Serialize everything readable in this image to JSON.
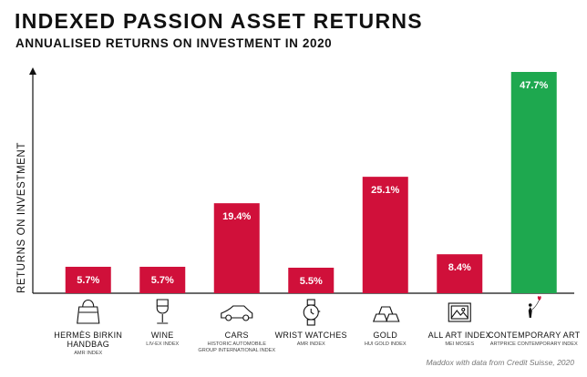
{
  "chart_data": {
    "type": "bar",
    "title": "INDEXED PASSION ASSET RETURNS",
    "subtitle": "ANNUALISED RETURNS ON INVESTMENT IN 2020",
    "ylabel": "RETURNS ON INVESTMENT",
    "xlabel": "",
    "ylim": [
      0,
      50
    ],
    "grid": false,
    "categories": [
      {
        "name_lines": [
          "HERMÈS BIRKIN",
          "HANDBAG"
        ],
        "index_lines": [
          "AMR INDEX"
        ],
        "icon": "handbag-icon"
      },
      {
        "name_lines": [
          "WINE"
        ],
        "index_lines": [
          "LIV-EX INDEX"
        ],
        "icon": "wine-glass-icon"
      },
      {
        "name_lines": [
          "CARS"
        ],
        "index_lines": [
          "HISTORIC AUTOMOBILE",
          "GROUP INTERNATIONAL INDEX"
        ],
        "icon": "car-icon"
      },
      {
        "name_lines": [
          "WRIST WATCHES"
        ],
        "index_lines": [
          "AMR INDEX"
        ],
        "icon": "watch-icon"
      },
      {
        "name_lines": [
          "GOLD"
        ],
        "index_lines": [
          "HUI GOLD INDEX"
        ],
        "icon": "gold-bars-icon"
      },
      {
        "name_lines": [
          "ALL ART INDEX"
        ],
        "index_lines": [
          "MEI MOSES"
        ],
        "icon": "framed-picture-icon"
      },
      {
        "name_lines": [
          "CONTEMPORARY ART"
        ],
        "index_lines": [
          "ARTPRICE CONTEMPORARY INDEX"
        ],
        "icon": "girl-with-balloon-icon"
      }
    ],
    "values": [
      5.7,
      5.7,
      19.4,
      5.5,
      25.1,
      8.4,
      47.7
    ],
    "value_labels": [
      "5.7%",
      "5.7%",
      "19.4%",
      "5.5%",
      "25.1%",
      "8.4%",
      "47.7%"
    ],
    "colors": [
      "#d0103a",
      "#d0103a",
      "#d0103a",
      "#d0103a",
      "#d0103a",
      "#d0103a",
      "#1ea84f"
    ]
  },
  "credit": "Maddox with data from Credit Suisse, 2020"
}
